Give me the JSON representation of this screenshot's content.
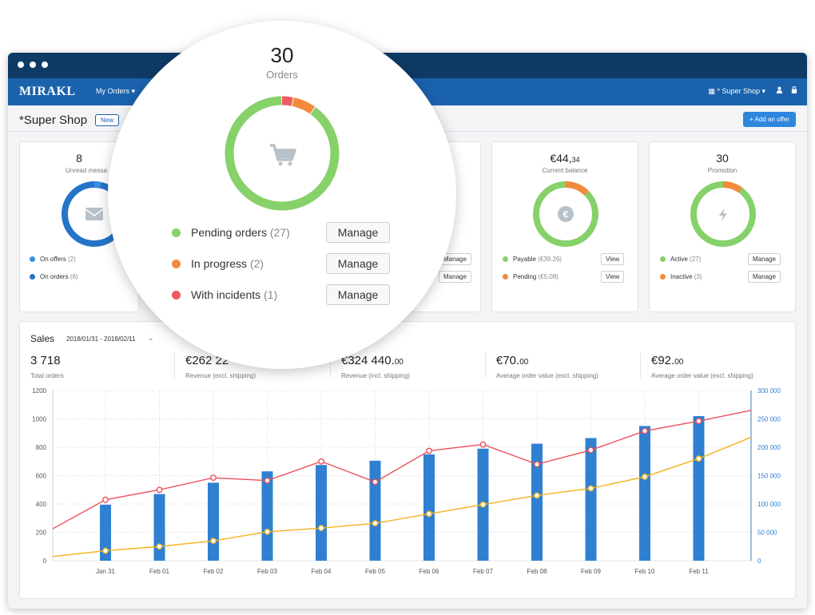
{
  "app": {
    "logo": "MIRAKL",
    "nav_my_orders": "My Orders ▾",
    "nav_shop": "▦ * Super Shop ▾",
    "user_icon": "user-icon",
    "lock_icon": "lock-icon"
  },
  "header": {
    "title": "*Super Shop",
    "badge": "New",
    "add_offer": "+ Add an offer"
  },
  "cards": {
    "messages": {
      "value": "8",
      "label": "Unread messa",
      "legend": [
        {
          "label": "On offers",
          "count": "(2)",
          "color": "#3a8fe0"
        },
        {
          "label": "On orders",
          "count": "(6)",
          "color": "#2574c8"
        }
      ]
    },
    "balance": {
      "value": "€44,",
      "value_small": "34",
      "label": "Current balance",
      "center_icon": "€",
      "legend": [
        {
          "label": "Payable",
          "count": "(€39.26)",
          "color": "#86d16a"
        },
        {
          "label": "Pending",
          "count": "(€5.08)",
          "color": "#f28a3c"
        }
      ],
      "buttons": [
        "View",
        "View"
      ]
    },
    "promotion": {
      "value": "30",
      "label": "Promotion",
      "center_icon": "lightning-icon",
      "legend": [
        {
          "label": "Active",
          "count": "(27)",
          "color": "#86d16a"
        },
        {
          "label": "Inactive",
          "count": "(3)",
          "color": "#f28a3c"
        }
      ],
      "buttons": [
        "Manage",
        "Manage"
      ]
    },
    "partial": {
      "buttons": [
        "Manage",
        "Manage"
      ]
    }
  },
  "orders_lens": {
    "value": "30",
    "label": "Orders",
    "center_icon": "cart-icon",
    "segments": [
      {
        "label": "Pending orders",
        "count": "(27)",
        "value": 27,
        "color": "#86d16a"
      },
      {
        "label": "In progress",
        "count": "(2)",
        "value": 2,
        "color": "#f28a3c"
      },
      {
        "label": "With incidents",
        "count": "(1)",
        "value": 1,
        "color": "#ef5a62"
      }
    ],
    "button": "Manage"
  },
  "sales": {
    "title": "Sales",
    "range": "2018/01/31 - 2018/02/11",
    "kpis": [
      {
        "value": "3 718",
        "small": "",
        "label": "Total orders"
      },
      {
        "value": "€262 22",
        "small": "",
        "label": "Revenue (excl. shipping)"
      },
      {
        "value": "€324 440.",
        "small": "00",
        "label": "Revenue (incl. shipping)"
      },
      {
        "value": "€70.",
        "small": "00",
        "label": "Average order value (excl. shipping)"
      },
      {
        "value": "€92.",
        "small": "00",
        "label": "Average order value (excl. shipping)"
      }
    ]
  },
  "chart_data": {
    "type": "bar",
    "title": "Sales",
    "categories": [
      "Jan 31",
      "Feb 01",
      "Feb 02",
      "Feb 03",
      "Feb 04",
      "Feb 05",
      "Feb 06",
      "Feb 07",
      "Feb 08",
      "Feb 09",
      "Feb 10",
      "Feb 11"
    ],
    "ylim": [
      0,
      1200
    ],
    "y_ticks": [
      "0",
      "200",
      "400",
      "600",
      "800",
      "1000",
      "1200"
    ],
    "y2lim": [
      0,
      300000
    ],
    "y2_ticks": [
      "0",
      "50 000",
      "100 000",
      "150 000",
      "200 000",
      "250 000",
      "300 000"
    ],
    "series": [
      {
        "name": "Orders (bars)",
        "axis": "left",
        "color": "#2f80d1",
        "values": [
          395,
          470,
          550,
          630,
          675,
          705,
          750,
          790,
          825,
          865,
          950,
          1020
        ]
      },
      {
        "name": "Red series",
        "axis": "left",
        "color": "#ec4f5a",
        "start": 225,
        "end": 1060,
        "values": [
          430,
          500,
          585,
          565,
          700,
          555,
          775,
          820,
          680,
          780,
          915,
          985
        ]
      },
      {
        "name": "Yellow series",
        "axis": "right",
        "color": "#f3b21c",
        "start": 7500,
        "end": 217500,
        "values": [
          17500,
          25000,
          35000,
          51000,
          57500,
          66000,
          82500,
          99000,
          115000,
          127500,
          148000,
          180000
        ]
      }
    ]
  }
}
